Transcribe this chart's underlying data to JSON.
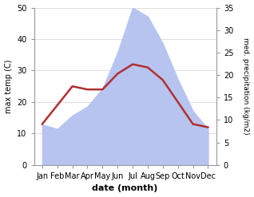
{
  "months": [
    "Jan",
    "Feb",
    "Mar",
    "Apr",
    "May",
    "Jun",
    "Jul",
    "Aug",
    "Sep",
    "Oct",
    "Nov",
    "Dec"
  ],
  "temp_C": [
    13,
    19,
    25,
    24,
    24,
    29,
    32,
    31,
    27,
    20,
    13,
    12
  ],
  "precip_kg": [
    9,
    8,
    11,
    13,
    17,
    25,
    35,
    33,
    27,
    19,
    12,
    8
  ],
  "temp_color": "#b03030",
  "precip_color_fill": "#b8c4f0",
  "left_ylim": [
    0,
    50
  ],
  "right_ylim": [
    0,
    35
  ],
  "left_ylabel": "max temp (C)",
  "right_ylabel": "med. precipitation (kg/m2)",
  "xlabel": "date (month)",
  "left_yticks": [
    0,
    10,
    20,
    30,
    40,
    50
  ],
  "right_yticks": [
    0,
    5,
    10,
    15,
    20,
    25,
    30,
    35
  ],
  "bg_color": "#ffffff",
  "line_width": 1.8
}
